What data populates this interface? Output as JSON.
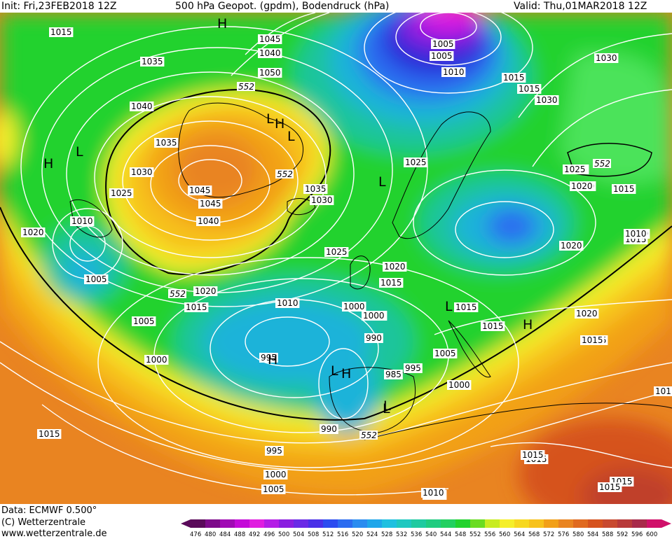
{
  "header": {
    "init": "Init: Fri,23FEB2018 12Z",
    "title": "500 hPa Geopot. (gpdm), Bodendruck (hPa)",
    "valid": "Valid: Thu,01MAR2018 12Z"
  },
  "footer": {
    "data_line": "Data: ECMWF  0.500°",
    "copyright": "(C) Wetterzentrale",
    "website": "www.wetterzentrale.de"
  },
  "colors": {
    "green": "#22d22e",
    "lightgreen": "#4be35a",
    "teal": "#1fc59b",
    "cyan": "#1fb3d9",
    "blue": "#2c6cf0",
    "deepblue": "#2a2ad8",
    "purple": "#8a1ee0",
    "magenta": "#e01ee0",
    "yellow": "#f5ef2a",
    "gold": "#f7c21c",
    "orange": "#f2a018",
    "darkorange": "#e98421",
    "red": "#d6531f",
    "darkred": "#c0402a",
    "isobar": "#ffffff",
    "coast": "#000000"
  },
  "scale_labels": [
    "476",
    "480",
    "484",
    "488",
    "492",
    "496",
    "500",
    "504",
    "508",
    "512",
    "516",
    "520",
    "524",
    "528",
    "532",
    "536",
    "540",
    "544",
    "548",
    "552",
    "556",
    "560",
    "564",
    "568",
    "572",
    "576",
    "580",
    "584",
    "588",
    "592",
    "596",
    "600"
  ],
  "scale_colors": [
    "#5a0a5a",
    "#7d0a8a",
    "#a00ab4",
    "#c40ad8",
    "#e01ee0",
    "#b41ee6",
    "#8a1ee0",
    "#6a2ae6",
    "#4a30e8",
    "#2c4cf0",
    "#2c6cf0",
    "#2a8cf0",
    "#1fa6ea",
    "#1fc0e0",
    "#1fc8c0",
    "#1fcaa0",
    "#20cc80",
    "#22d060",
    "#22d22e",
    "#6adc22",
    "#c8ec22",
    "#f5ef2a",
    "#f7d820",
    "#f7c21c",
    "#f2a018",
    "#e98421",
    "#e06a20",
    "#d6531f",
    "#c84a30",
    "#b83a3a",
    "#a82a4a",
    "#d0106a"
  ],
  "pressure_labels": [
    {
      "text": "1015"
    },
    {
      "text": "1035"
    },
    {
      "text": "1040"
    },
    {
      "text": "1045"
    },
    {
      "text": "1050"
    },
    {
      "text": "1040"
    },
    {
      "text": "1035"
    },
    {
      "text": "1030"
    },
    {
      "text": "1025"
    },
    {
      "text": "1045"
    },
    {
      "text": "1045"
    },
    {
      "text": "1040"
    },
    {
      "text": "1035"
    },
    {
      "text": "1030"
    },
    {
      "text": "1010"
    },
    {
      "text": "1020"
    },
    {
      "text": "1005"
    },
    {
      "text": "1020"
    },
    {
      "text": "1015"
    },
    {
      "text": "1010"
    },
    {
      "text": "1005"
    },
    {
      "text": "1000"
    },
    {
      "text": "995"
    },
    {
      "text": "1005"
    },
    {
      "text": "1000"
    },
    {
      "text": "990"
    },
    {
      "text": "985"
    },
    {
      "text": "995"
    },
    {
      "text": "990"
    },
    {
      "text": "995"
    },
    {
      "text": "1000"
    },
    {
      "text": "1005"
    },
    {
      "text": "1015"
    },
    {
      "text": "1025"
    },
    {
      "text": "1020"
    },
    {
      "text": "1015"
    },
    {
      "text": "1025"
    },
    {
      "text": "1000"
    },
    {
      "text": "1005"
    },
    {
      "text": "1010"
    },
    {
      "text": "1015"
    },
    {
      "text": "1030"
    },
    {
      "text": "1030"
    },
    {
      "text": "1020"
    },
    {
      "text": "1015"
    },
    {
      "text": "1015"
    },
    {
      "text": "1010"
    },
    {
      "text": "1015"
    },
    {
      "text": "1015"
    },
    {
      "text": "1015"
    },
    {
      "text": "1020"
    },
    {
      "text": "1005"
    },
    {
      "text": "1010"
    },
    {
      "text": "1015"
    },
    {
      "text": "1015"
    },
    {
      "text": "1015"
    },
    {
      "text": "1000"
    },
    {
      "text": "1010"
    },
    {
      "text": "1025"
    },
    {
      "text": "101"
    },
    {
      "text": "1005"
    },
    {
      "text": "1020"
    },
    {
      "text": "1010"
    },
    {
      "text": "1015"
    },
    {
      "text": "1000"
    },
    {
      "text": "1015"
    },
    {
      "text": "1020"
    },
    {
      "text": "1025"
    },
    {
      "text": "1030"
    },
    {
      "text": "1015"
    },
    {
      "text": "1010"
    },
    {
      "text": "1015"
    }
  ],
  "height_labels": [
    {
      "text": "552"
    },
    {
      "text": "552"
    },
    {
      "text": "552"
    },
    {
      "text": "552"
    },
    {
      "text": "552"
    }
  ],
  "pressure_centers": [
    {
      "text": "H"
    },
    {
      "text": "L"
    },
    {
      "text": "H"
    },
    {
      "text": "L"
    },
    {
      "text": "H"
    },
    {
      "text": "L"
    },
    {
      "text": "H"
    },
    {
      "text": "L"
    },
    {
      "text": "H"
    },
    {
      "text": "L"
    },
    {
      "text": "L"
    },
    {
      "text": "L"
    },
    {
      "text": "H"
    },
    {
      "text": "L"
    }
  ]
}
